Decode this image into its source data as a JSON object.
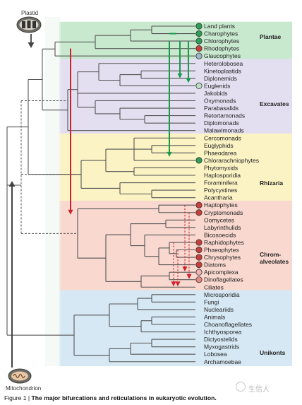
{
  "icons": {
    "plastid_label": "Plastid",
    "mitochondrion_label": "Mitochondrion"
  },
  "groups": [
    {
      "name": "Plantae",
      "color": "#c9e9cf"
    },
    {
      "name": "Excavates",
      "color": "#e3dff0"
    },
    {
      "name": "Rhizaria",
      "color": "#fbf3c4"
    },
    {
      "name": "Chrom-\nalveolates",
      "color": "#f9d8cf"
    },
    {
      "name": "Unikonts",
      "color": "#d6e8f4"
    }
  ],
  "taxa": [
    {
      "name": "Land plants",
      "marker": "green"
    },
    {
      "name": "Charophytes",
      "marker": "green"
    },
    {
      "name": "Chlorophytes",
      "marker": "green"
    },
    {
      "name": "Rhodophytes",
      "marker": "red"
    },
    {
      "name": "Glaucophytes",
      "marker": "blue"
    },
    {
      "name": "Heterolobosea",
      "marker": "none"
    },
    {
      "name": "Kinetoplastids",
      "marker": "none"
    },
    {
      "name": "Diplonemids",
      "marker": "none"
    },
    {
      "name": "Euglenids",
      "marker": "greenlight"
    },
    {
      "name": "Jakobids",
      "marker": "none"
    },
    {
      "name": "Oxymonads",
      "marker": "none"
    },
    {
      "name": "Parabasalids",
      "marker": "none"
    },
    {
      "name": "Retortamonads",
      "marker": "none"
    },
    {
      "name": "Diplomonads",
      "marker": "none"
    },
    {
      "name": "Malawimonads",
      "marker": "none"
    },
    {
      "name": "Cercomonads",
      "marker": "none"
    },
    {
      "name": "Euglyphids",
      "marker": "none"
    },
    {
      "name": "Phaeodarea",
      "marker": "none"
    },
    {
      "name": "Chlorarachniophytes",
      "marker": "green"
    },
    {
      "name": "Phytomyxids",
      "marker": "none"
    },
    {
      "name": "Haplosporidia",
      "marker": "none"
    },
    {
      "name": "Foraminifera",
      "marker": "none"
    },
    {
      "name": "Polycystines",
      "marker": "none"
    },
    {
      "name": "Acantharia",
      "marker": "none"
    },
    {
      "name": "Haptophytes",
      "marker": "red"
    },
    {
      "name": "Cryptomonads",
      "marker": "red"
    },
    {
      "name": "Oomycetes",
      "marker": "none"
    },
    {
      "name": "Labyrinthulids",
      "marker": "none"
    },
    {
      "name": "Bicosoecids",
      "marker": "none"
    },
    {
      "name": "Raphidophytes",
      "marker": "red"
    },
    {
      "name": "Phaeophytes",
      "marker": "red"
    },
    {
      "name": "Chrysophytes",
      "marker": "red"
    },
    {
      "name": "Diatoms",
      "marker": "red"
    },
    {
      "name": "Apicomplexa",
      "marker": "pink"
    },
    {
      "name": "Dinoflagellates",
      "marker": "redlight"
    },
    {
      "name": "Ciliates",
      "marker": "none"
    },
    {
      "name": "Microsporidia",
      "marker": "none"
    },
    {
      "name": "Fungi",
      "marker": "none"
    },
    {
      "name": "Nucleariids",
      "marker": "none"
    },
    {
      "name": "Animals",
      "marker": "none"
    },
    {
      "name": "Choanoflagellates",
      "marker": "none"
    },
    {
      "name": "Ichthyosporea",
      "marker": "none"
    },
    {
      "name": "Dictyostelids",
      "marker": "none"
    },
    {
      "name": "Myxogastrids",
      "marker": "none"
    },
    {
      "name": "Lobosea",
      "marker": "none"
    },
    {
      "name": "Archamoebae",
      "marker": "none"
    }
  ],
  "colors": {
    "tree": "#555555",
    "green_arrow": "#1a9b4a",
    "red_arrow": "#d0202a",
    "host_arrow": "#444444",
    "marker_green": "#2f9e57",
    "marker_red": "#c9403a",
    "marker_blue": "#9fb6cc",
    "marker_greenlight": "#b9dfc0",
    "marker_pink": "#f1b4b2",
    "marker_redlight": "#e88a82"
  },
  "caption": {
    "prefix": "Figure 1 | ",
    "title": "The major bifurcations and reticulations in eukaryotic evolution."
  },
  "watermark": "生信人"
}
